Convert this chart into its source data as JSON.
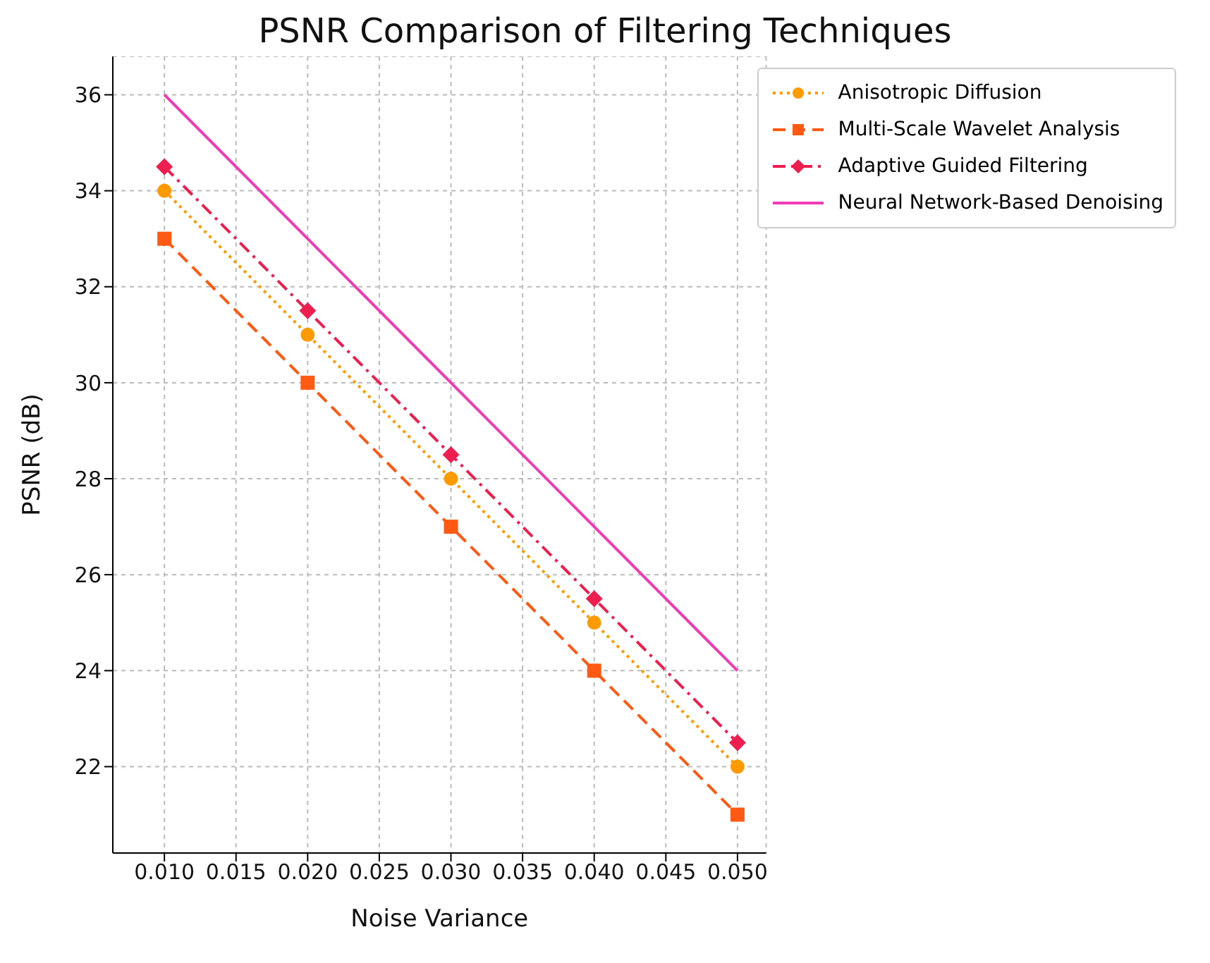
{
  "chart_data": {
    "type": "line",
    "title": "PSNR Comparison of Filtering Techniques",
    "xlabel": "Noise Variance",
    "ylabel": "PSNR (dB)",
    "x": [
      0.01,
      0.02,
      0.03,
      0.04,
      0.05
    ],
    "series": [
      {
        "name": "Anisotropic Diffusion",
        "color": "#ff9a00",
        "values": [
          34,
          31,
          28,
          25,
          22
        ],
        "marker": "circle",
        "line_style": "dotted"
      },
      {
        "name": "Multi-Scale Wavelet Analysis",
        "color": "#ff5a14",
        "values": [
          33,
          30,
          27,
          24,
          21
        ],
        "marker": "square",
        "line_style": "dashed"
      },
      {
        "name": "Adaptive Guided Filtering",
        "color": "#ee1f4f",
        "values": [
          34.5,
          31.5,
          28.5,
          25.5,
          22.5
        ],
        "marker": "diamond",
        "line_style": "dashdot"
      },
      {
        "name": "Neural Network-Based Denoising",
        "color": "#f03cb4",
        "values": [
          36,
          33,
          30,
          27,
          24
        ],
        "marker": "none",
        "line_style": "solid"
      }
    ],
    "xlim": [
      0.0064,
      0.052
    ],
    "xticks": [
      {
        "value": 0.01,
        "label": "0.010"
      },
      {
        "value": 0.015,
        "label": "0.015"
      },
      {
        "value": 0.02,
        "label": "0.020"
      },
      {
        "value": 0.025,
        "label": "0.025"
      },
      {
        "value": 0.03,
        "label": "0.030"
      },
      {
        "value": 0.035,
        "label": "0.035"
      },
      {
        "value": 0.04,
        "label": "0.040"
      },
      {
        "value": 0.045,
        "label": "0.045"
      },
      {
        "value": 0.05,
        "label": "0.050"
      }
    ],
    "ylim": [
      20.2,
      36.8
    ],
    "yticks": [
      22,
      24,
      26,
      28,
      30,
      32,
      34,
      36
    ],
    "grid": true,
    "legend": "top right"
  }
}
